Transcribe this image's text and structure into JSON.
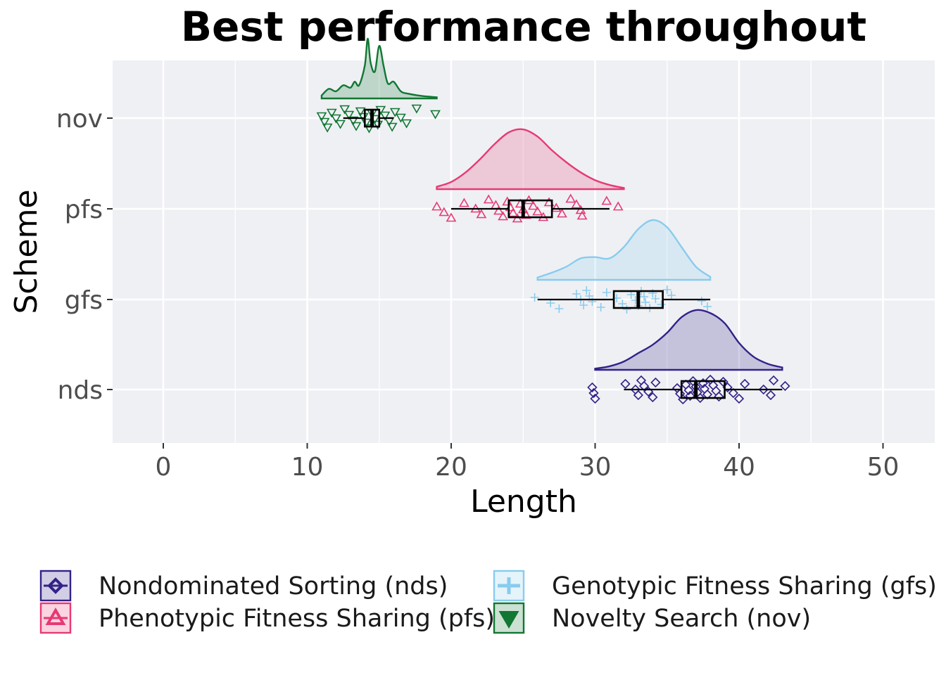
{
  "chart_data": {
    "type": "raincloud",
    "title": "Best performance throughout",
    "xlabel": "Length",
    "ylabel": "Scheme",
    "xlim": [
      -3.5,
      53.5
    ],
    "xticks": [
      0,
      10,
      20,
      30,
      40,
      50
    ],
    "grid": true,
    "legend_position": "bottom",
    "categories": [
      "nov",
      "pfs",
      "gfs",
      "nds"
    ],
    "series": [
      {
        "key": "nds",
        "name": "Nondominated Sorting (nds)",
        "color": "#332288",
        "marker": "diamond",
        "range": [
          30,
          43
        ],
        "box": {
          "min": 32,
          "q1": 36,
          "median": 37,
          "q3": 39,
          "max": 43
        },
        "density": [
          [
            30,
            0.02
          ],
          [
            31,
            0.06
          ],
          [
            32,
            0.14
          ],
          [
            33,
            0.28
          ],
          [
            34,
            0.42
          ],
          [
            35,
            0.62
          ],
          [
            36,
            0.88
          ],
          [
            37,
            1.0
          ],
          [
            38,
            0.95
          ],
          [
            39,
            0.78
          ],
          [
            40,
            0.45
          ],
          [
            41,
            0.22
          ],
          [
            42,
            0.1
          ],
          [
            43,
            0.04
          ]
        ],
        "points": [
          29.8,
          29.9,
          30.0,
          32.1,
          32.8,
          33.0,
          33.2,
          33.4,
          33.7,
          34.0,
          34.2,
          35.7,
          35.9,
          36.1,
          36.3,
          36.5,
          36.6,
          36.8,
          37.0,
          37.1,
          37.3,
          37.5,
          37.6,
          37.8,
          38.0,
          38.2,
          38.4,
          38.6,
          38.9,
          39.2,
          39.6,
          40.0,
          40.4,
          41.7,
          42.2,
          42.4,
          43.2
        ]
      },
      {
        "key": "gfs",
        "name": "Genotypic Fitness Sharing (gfs)",
        "color": "#88ccee",
        "marker": "plus",
        "range": [
          26,
          38
        ],
        "box": {
          "min": 26,
          "q1": 31.3,
          "median": 33,
          "q3": 34.7,
          "max": 38
        },
        "density": [
          [
            26,
            0.04
          ],
          [
            27,
            0.12
          ],
          [
            28,
            0.22
          ],
          [
            29,
            0.36
          ],
          [
            30,
            0.38
          ],
          [
            31,
            0.36
          ],
          [
            32,
            0.55
          ],
          [
            33,
            0.85
          ],
          [
            34,
            1.0
          ],
          [
            35,
            0.88
          ],
          [
            36,
            0.55
          ],
          [
            37,
            0.22
          ],
          [
            38,
            0.05
          ]
        ],
        "points": [
          25.8,
          26.9,
          27.5,
          28.7,
          29.0,
          29.2,
          29.4,
          29.6,
          29.8,
          30.4,
          30.8,
          31.5,
          31.9,
          32.2,
          32.5,
          32.8,
          33.0,
          33.2,
          33.4,
          33.5,
          33.8,
          34.0,
          34.2,
          34.6,
          35.0,
          35.3,
          37.4,
          37.8
        ]
      },
      {
        "key": "pfs",
        "name": "Phenotypic Fitness Sharing (pfs)",
        "color": "#e63a74",
        "marker": "triangle-up",
        "range": [
          19,
          32
        ],
        "box": {
          "min": 20,
          "q1": 24,
          "median": 25,
          "q3": 27,
          "max": 31
        },
        "density": [
          [
            19,
            0.04
          ],
          [
            20,
            0.12
          ],
          [
            21,
            0.28
          ],
          [
            22,
            0.5
          ],
          [
            23,
            0.75
          ],
          [
            24,
            0.95
          ],
          [
            25,
            1.0
          ],
          [
            26,
            0.88
          ],
          [
            27,
            0.65
          ],
          [
            28,
            0.45
          ],
          [
            29,
            0.28
          ],
          [
            30,
            0.15
          ],
          [
            31,
            0.07
          ],
          [
            32,
            0.02
          ]
        ],
        "points": [
          19.0,
          19.5,
          20.0,
          20.9,
          21.7,
          22.1,
          22.6,
          23.1,
          23.3,
          23.6,
          23.9,
          24.1,
          24.3,
          24.6,
          24.8,
          25.0,
          25.2,
          25.4,
          25.7,
          26.0,
          26.4,
          26.8,
          27.3,
          27.7,
          28.3,
          28.7,
          29.0,
          29.1,
          30.8,
          31.6
        ]
      },
      {
        "key": "nov",
        "name": "Novelty Search (nov)",
        "color": "#117733",
        "marker": "triangle-down",
        "range": [
          11,
          19
        ],
        "box": {
          "min": 12.5,
          "q1": 14,
          "median": 14.5,
          "q3": 15,
          "max": 16
        },
        "density": [
          [
            11,
            0.05
          ],
          [
            11.5,
            0.16
          ],
          [
            12,
            0.12
          ],
          [
            12.5,
            0.22
          ],
          [
            13,
            0.18
          ],
          [
            13.3,
            0.28
          ],
          [
            13.6,
            0.22
          ],
          [
            14,
            0.55
          ],
          [
            14.2,
            1.0
          ],
          [
            14.4,
            0.6
          ],
          [
            14.7,
            0.45
          ],
          [
            15,
            0.88
          ],
          [
            15.3,
            0.55
          ],
          [
            15.6,
            0.25
          ],
          [
            16,
            0.28
          ],
          [
            16.5,
            0.12
          ],
          [
            17,
            0.08
          ],
          [
            18,
            0.04
          ],
          [
            19,
            0.02
          ]
        ],
        "points": [
          11.0,
          11.2,
          11.4,
          11.7,
          12.0,
          12.3,
          12.6,
          12.9,
          13.2,
          13.4,
          13.7,
          13.9,
          14.1,
          14.3,
          14.5,
          14.7,
          14.9,
          15.1,
          15.4,
          15.7,
          15.9,
          16.1,
          16.5,
          16.9,
          17.6,
          18.9
        ]
      }
    ]
  }
}
